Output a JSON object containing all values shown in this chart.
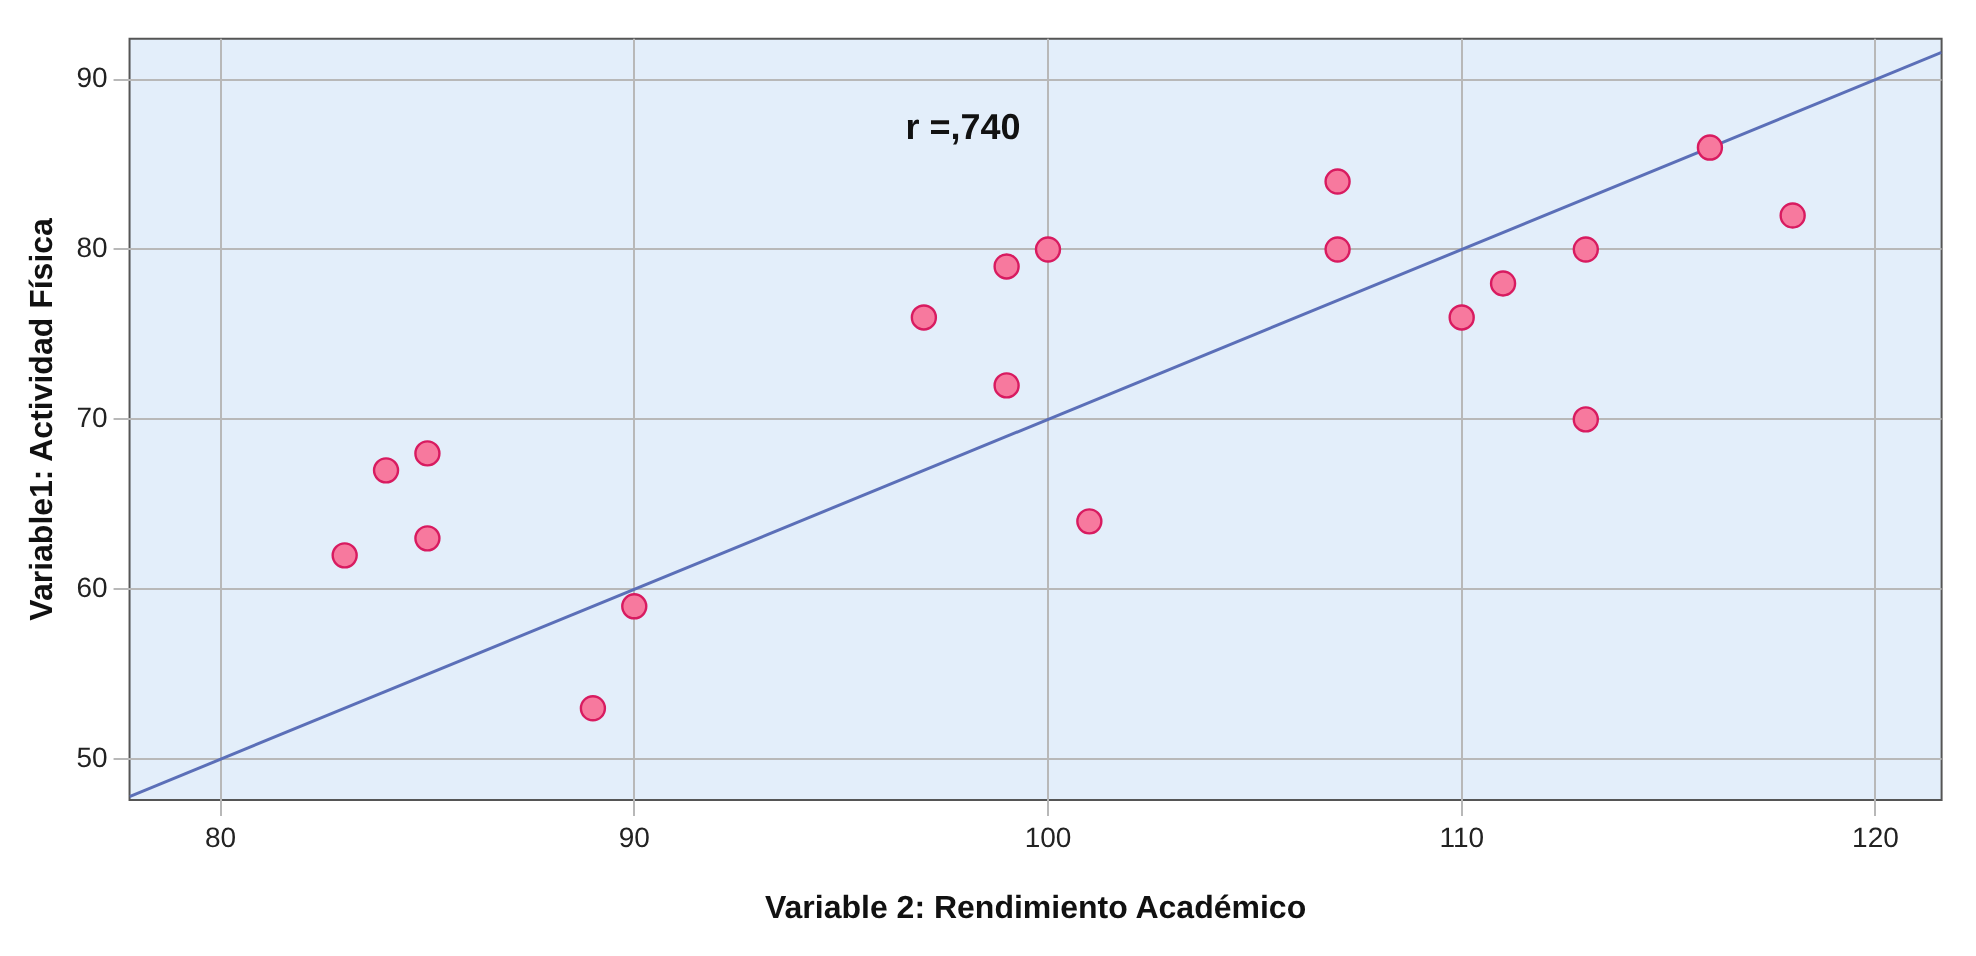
{
  "chart_data": {
    "type": "scatter",
    "xlabel": "Variable 2: Rendimiento Académico",
    "ylabel": "Variable1: Actividad Física",
    "annotations": [
      "r =,740"
    ],
    "xlim": [
      77.8,
      121.6
    ],
    "ylim": [
      47.6,
      92.4
    ],
    "xticks": [
      80,
      90,
      100,
      110,
      120
    ],
    "yticks": [
      50,
      60,
      70,
      80,
      90
    ],
    "grid": true,
    "legend": false,
    "series": [
      {
        "marker": "circle",
        "color": "#f7799e",
        "x": [
          83,
          84,
          85,
          85,
          89,
          90,
          97,
          99,
          99,
          100,
          101,
          107,
          107,
          110,
          111,
          113,
          113,
          116,
          118
        ],
        "values": [
          62,
          67,
          68,
          63,
          53,
          59,
          76,
          79,
          72,
          80,
          64,
          84,
          80,
          76,
          78,
          80,
          70,
          86,
          82
        ]
      },
      {
        "type": "line",
        "color": "#5b6fb8",
        "x": [
          77.8,
          121.6
        ],
        "values": [
          47.8,
          91.6
        ]
      }
    ]
  }
}
